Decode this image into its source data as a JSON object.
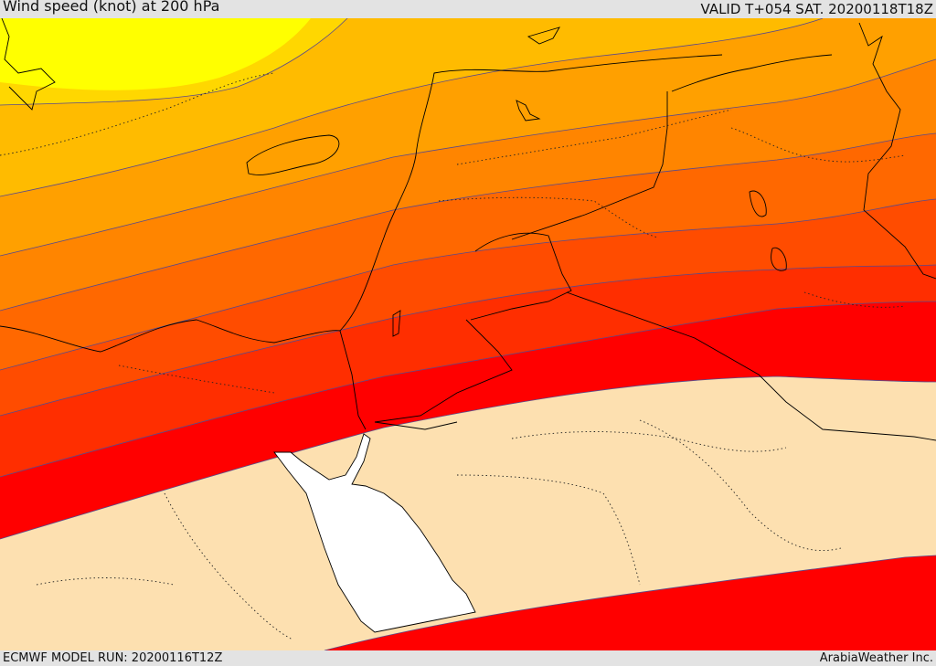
{
  "header": {
    "title": "Wind speed (knot) at 200 hPa",
    "valid": "VALID T+054 SAT. 20200118T18Z"
  },
  "footer": {
    "model_run": "ECMWF MODEL RUN: 20200116T12Z",
    "credit": "ArabiaWeather Inc."
  },
  "map": {
    "variable": "wind speed",
    "level": "200 hPa",
    "unit": "knot",
    "colors": {
      "band_1": "#ffff00",
      "band_2": "#ffd700",
      "band_3": "#ffbb00",
      "band_4": "#ffa000",
      "band_5": "#ff8500",
      "band_6": "#ff6800",
      "band_7": "#ff4c00",
      "band_8": "#ff2e00",
      "band_9": "#ff0000",
      "low_wind": "#fde0b0",
      "sea_unshaded": "#ffffff",
      "contour_line": "#5a4a8a",
      "coastline": "#000000"
    }
  }
}
